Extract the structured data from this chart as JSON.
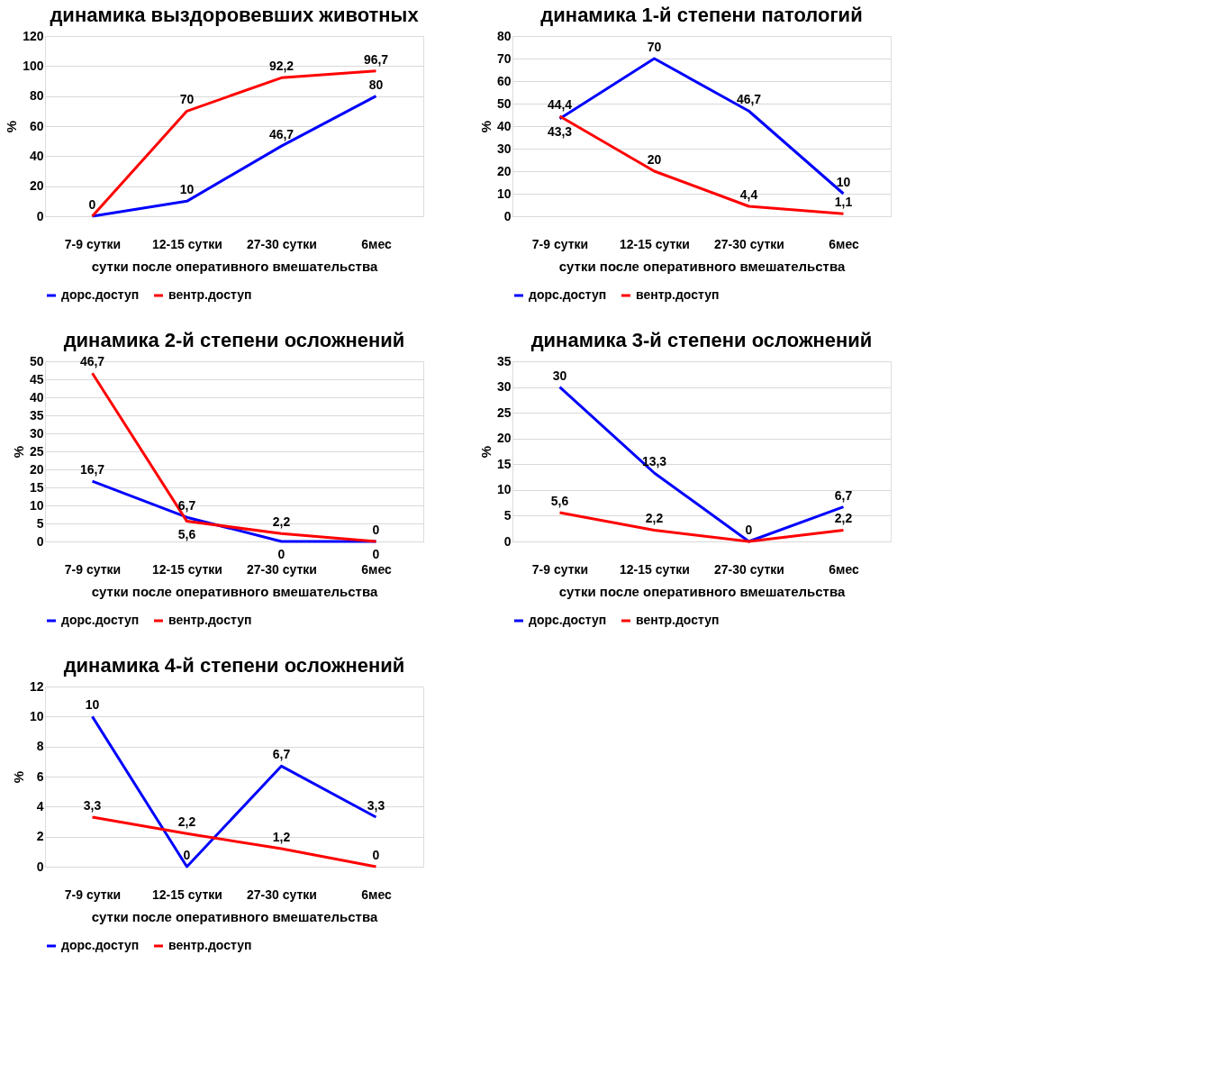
{
  "chart_data": [
    {
      "type": "line",
      "title": "динамика выздоровевших животных",
      "xlabel": "сутки после оперативного вмешательства",
      "ylabel": "%",
      "categories": [
        "7-9 сутки",
        "12-15 сутки",
        "27-30 сутки",
        "6мес"
      ],
      "ylim": [
        0,
        120
      ],
      "yticks": [
        0,
        20,
        40,
        60,
        80,
        100,
        120
      ],
      "grid": "y",
      "legend": "bottom",
      "series": [
        {
          "name": "дорс.доступ",
          "color": "#0000ff",
          "values": [
            0,
            10,
            46.7,
            80
          ],
          "value_labels": [
            null,
            "10",
            "46,7",
            "80"
          ]
        },
        {
          "name": "вентр.доступ",
          "color": "#ff0000",
          "values": [
            0,
            70,
            92.2,
            96.7
          ],
          "value_labels": [
            "0",
            "70",
            "92,2",
            "96,7"
          ]
        }
      ]
    },
    {
      "type": "line",
      "title": "динамика 1-й степени патологий",
      "xlabel": "сутки после оперативного вмешательства",
      "ylabel": "%",
      "categories": [
        "7-9 сутки",
        "12-15 сутки",
        "27-30 сутки",
        "6мес"
      ],
      "ylim": [
        0,
        80
      ],
      "yticks": [
        0,
        10,
        20,
        30,
        40,
        50,
        60,
        70,
        80
      ],
      "grid": "y",
      "legend": "bottom",
      "series": [
        {
          "name": "дорс.доступ",
          "color": "#0000ff",
          "values": [
            43.3,
            70,
            46.7,
            10
          ],
          "value_labels": [
            "43,3",
            "70",
            "46,7",
            "10"
          ]
        },
        {
          "name": "вентр.доступ",
          "color": "#ff0000",
          "values": [
            44.4,
            20,
            4.4,
            1.1
          ],
          "value_labels": [
            "44,4",
            "20",
            "4,4",
            "1,1"
          ]
        }
      ]
    },
    {
      "type": "line",
      "title": "динамика 2-й степени осложнений",
      "xlabel": "сутки после оперативного вмешательства",
      "ylabel": "%",
      "categories": [
        "7-9 сутки",
        "12-15 сутки",
        "27-30 сутки",
        "6мес"
      ],
      "ylim": [
        0,
        50
      ],
      "yticks": [
        0,
        5,
        10,
        15,
        20,
        25,
        30,
        35,
        40,
        45,
        50
      ],
      "grid": "y",
      "legend": "bottom",
      "series": [
        {
          "name": "дорс.доступ",
          "color": "#0000ff",
          "values": [
            16.7,
            6.7,
            0,
            0
          ],
          "value_labels": [
            "16,7",
            "6,7",
            "0",
            "0"
          ]
        },
        {
          "name": "вентр.доступ",
          "color": "#ff0000",
          "values": [
            46.7,
            5.6,
            2.2,
            0
          ],
          "value_labels": [
            "46,7",
            "5,6",
            "2,2",
            "0"
          ]
        }
      ]
    },
    {
      "type": "line",
      "title": "динамика 3-й степени осложнений",
      "xlabel": "сутки после оперативного вмешательства",
      "ylabel": "%",
      "categories": [
        "7-9 сутки",
        "12-15 сутки",
        "27-30 сутки",
        "6мес"
      ],
      "ylim": [
        0,
        35
      ],
      "yticks": [
        0,
        5,
        10,
        15,
        20,
        25,
        30,
        35
      ],
      "grid": "y",
      "legend": "bottom",
      "series": [
        {
          "name": "дорс.доступ",
          "color": "#0000ff",
          "values": [
            30,
            13.3,
            0,
            6.7
          ],
          "value_labels": [
            "30",
            "13,3",
            "0",
            "6,7"
          ]
        },
        {
          "name": "вентр.доступ",
          "color": "#ff0000",
          "values": [
            5.6,
            2.2,
            0,
            2.2
          ],
          "value_labels": [
            "5,6",
            "2,2",
            null,
            "2,2"
          ]
        }
      ]
    },
    {
      "type": "line",
      "title": "динамика 4-й степени осложнений",
      "xlabel": "сутки после оперативного вмешательства",
      "ylabel": "%",
      "categories": [
        "7-9 сутки",
        "12-15 сутки",
        "27-30 сутки",
        "6мес"
      ],
      "ylim": [
        0,
        12
      ],
      "yticks": [
        0,
        2,
        4,
        6,
        8,
        10,
        12
      ],
      "grid": "y",
      "legend": "bottom",
      "series": [
        {
          "name": "дорс.доступ",
          "color": "#0000ff",
          "values": [
            10,
            0,
            6.7,
            3.3
          ],
          "value_labels": [
            "10",
            "0",
            "6,7",
            "3,3"
          ]
        },
        {
          "name": "вентр.доступ",
          "color": "#ff0000",
          "values": [
            3.3,
            2.2,
            1.2,
            0
          ],
          "value_labels": [
            "3,3",
            "2,2",
            "1,2",
            "0"
          ]
        }
      ]
    }
  ]
}
